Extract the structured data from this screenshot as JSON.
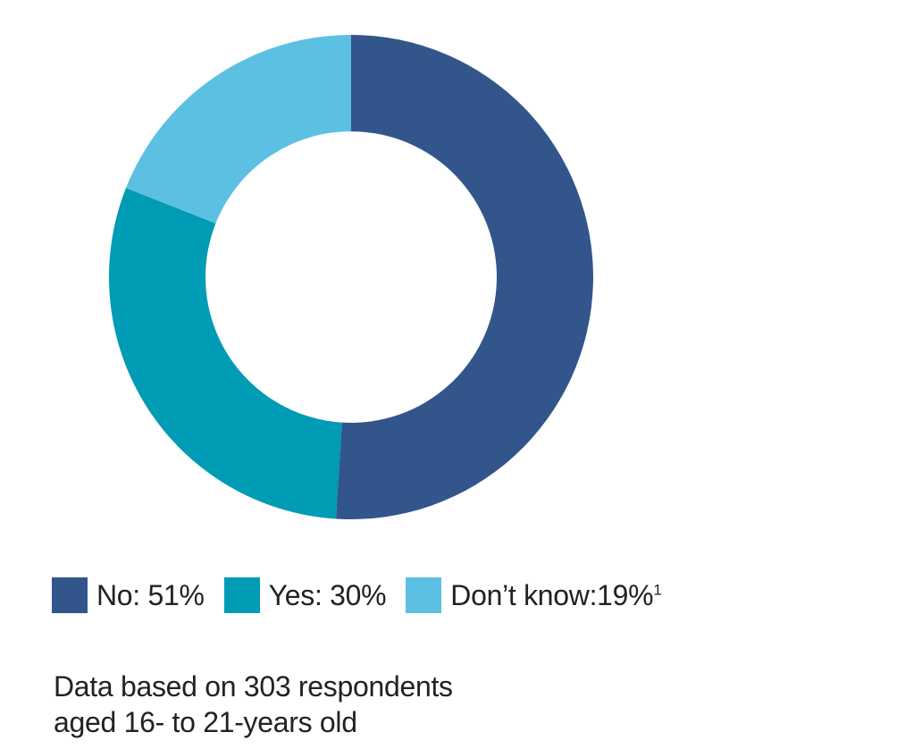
{
  "chart_data": {
    "type": "pie",
    "donut": true,
    "categories": [
      "No",
      "Yes",
      "Don’t know"
    ],
    "values": [
      51,
      30,
      19
    ],
    "unit": "%",
    "colors": [
      "#32558c",
      "#009bb4",
      "#5cc0e3"
    ],
    "legend": [
      {
        "label": "No: 51%",
        "color": "#32558c"
      },
      {
        "label": "Yes: 30%",
        "color": "#009bb4"
      },
      {
        "label": "Don’t know:19%",
        "footnote": "1",
        "color": "#5cc0e3"
      }
    ],
    "legend_position": "bottom",
    "start_angle": "12 o'clock",
    "direction": "clockwise"
  },
  "note": {
    "line1": "Data based on 303 respondents",
    "line2": "aged 16- to 21-years old"
  }
}
